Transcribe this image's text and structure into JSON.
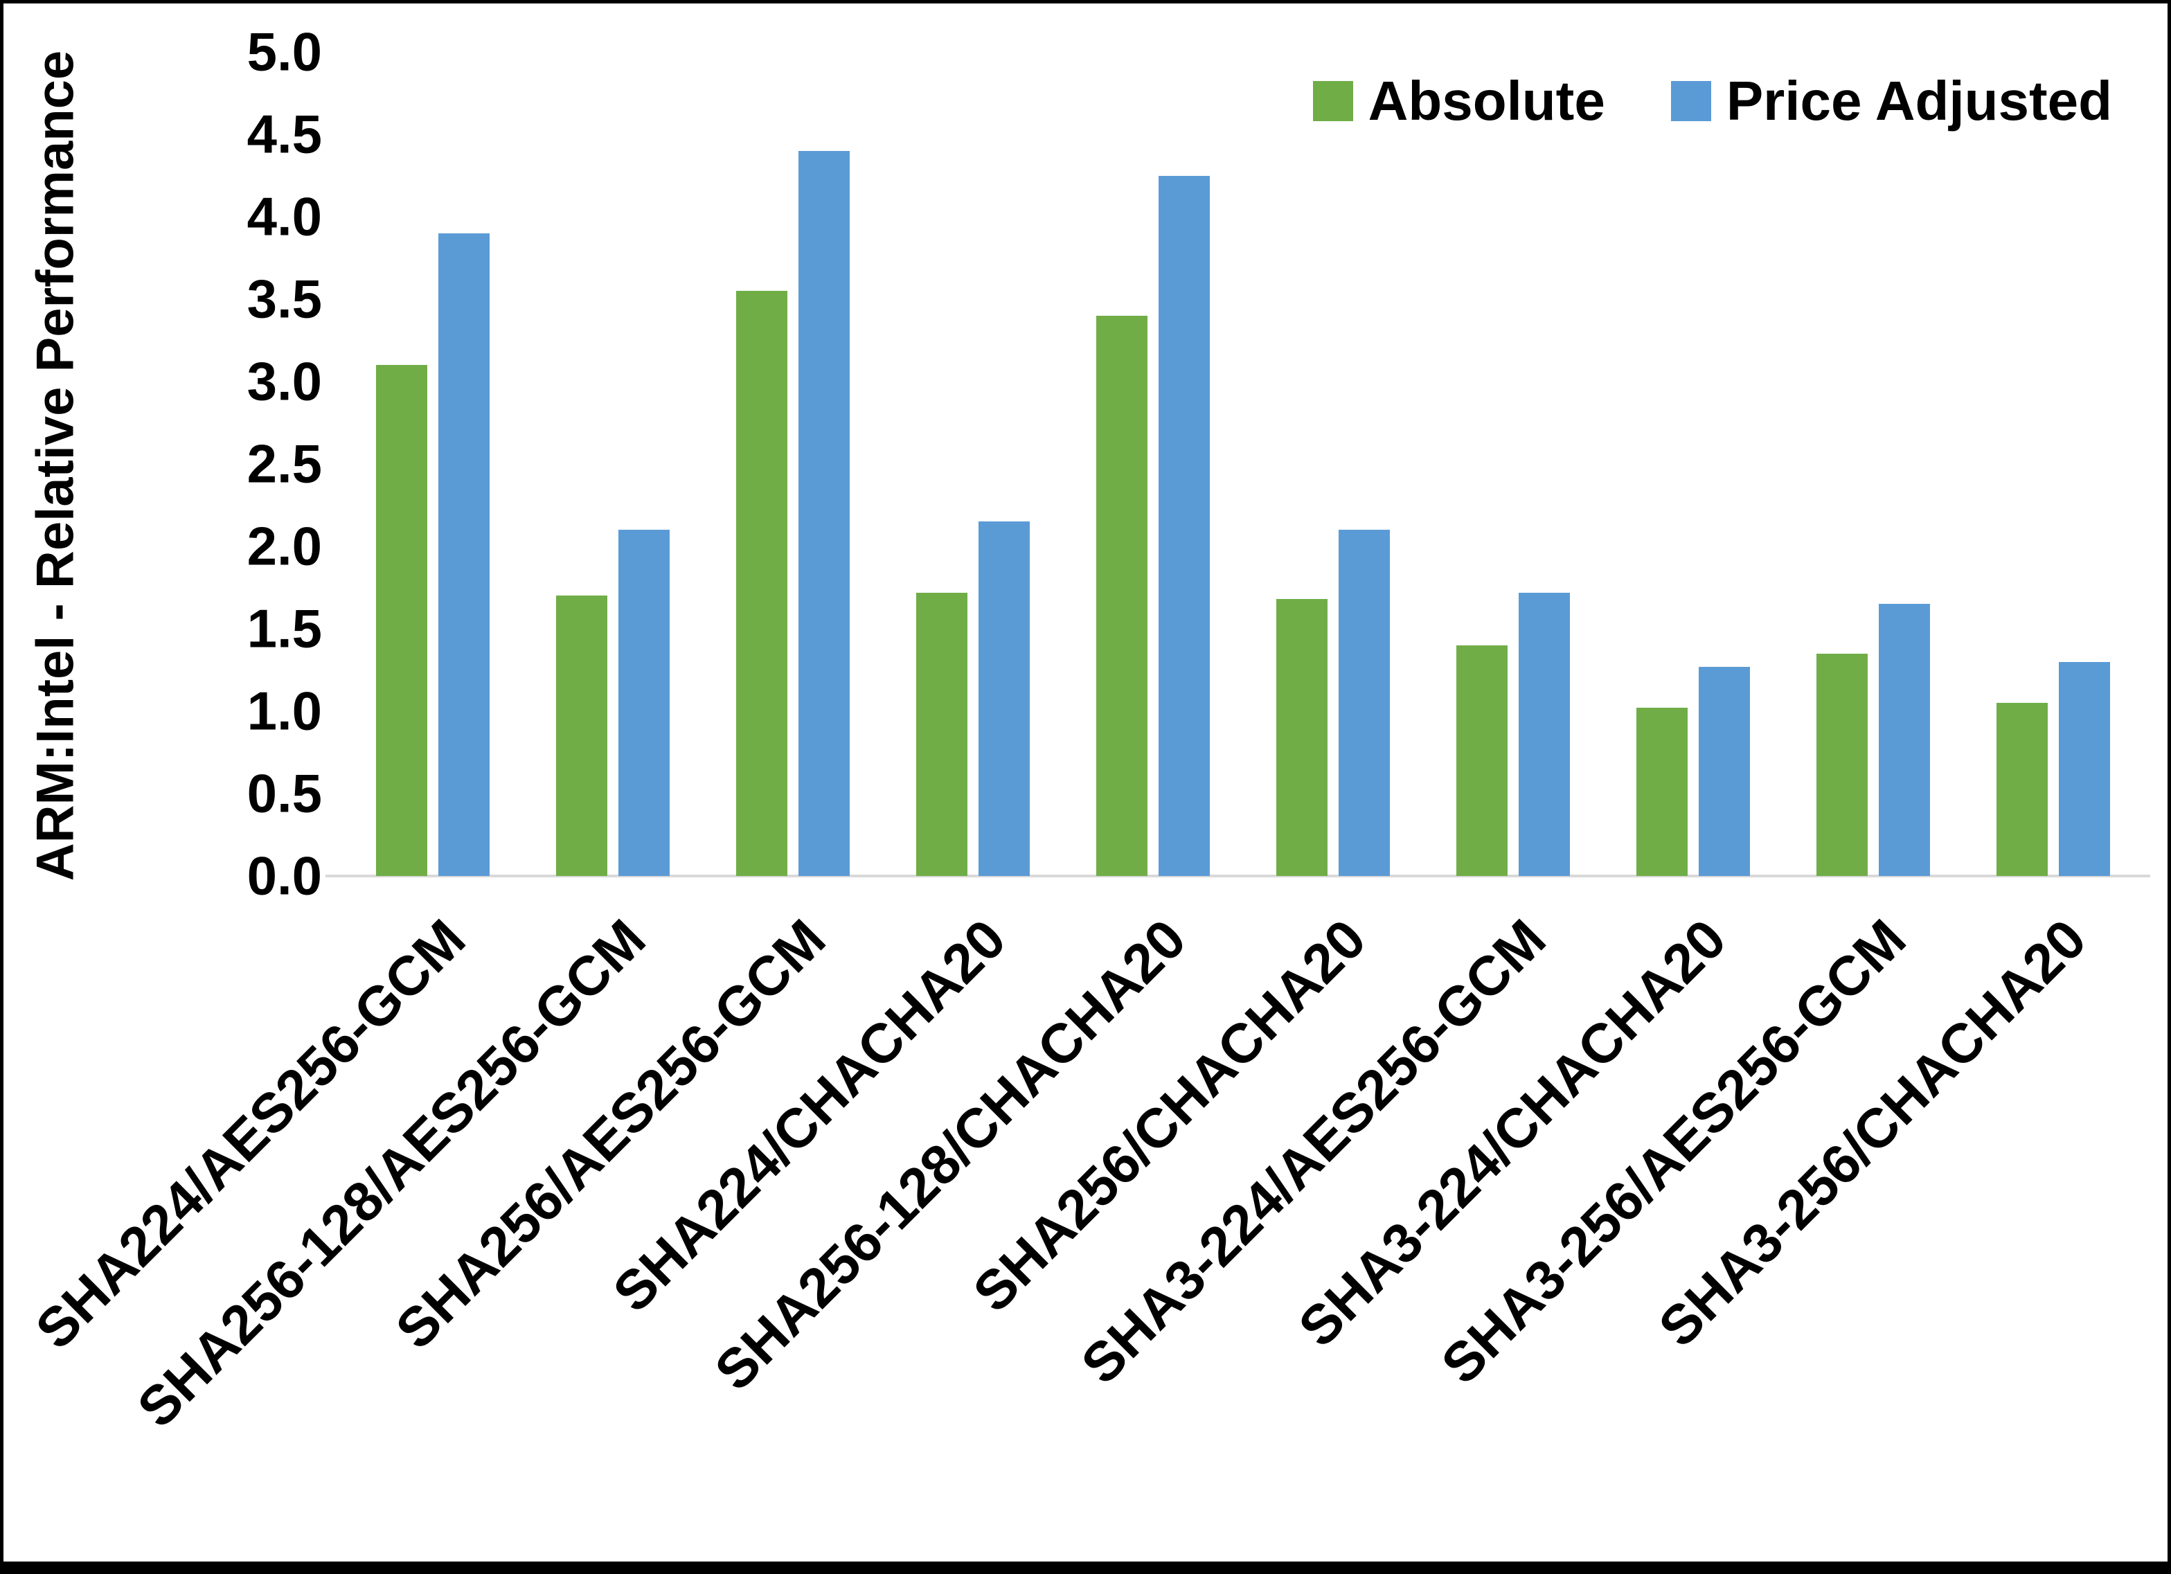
{
  "figure": {
    "background": "#ffffff",
    "border_color": "#000000"
  },
  "chart_data": {
    "type": "bar",
    "title": "",
    "xlabel": "",
    "ylabel": "ARM:Intel - Relative Performance",
    "ylim": [
      0,
      5
    ],
    "ytick_step": 0.5,
    "yticks": [
      "0.0",
      "0.5",
      "1.0",
      "1.5",
      "2.0",
      "2.5",
      "3.0",
      "3.5",
      "4.0",
      "4.5",
      "5.0"
    ],
    "grid": false,
    "legend_position": "top-right",
    "categories": [
      "SHA224/AES256-GCM",
      "SHA256-128/AES256-GCM",
      "SHA256/AES256-GCM",
      "SHA224/CHACHA20",
      "SHA256-128/CHACHA20",
      "SHA256/CHACHA20",
      "SHA3-224/AES256-GCM",
      "SHA3-224/CHACHA20",
      "SHA3-256/AES256-GCM",
      "SHA3-256/CHACHA20"
    ],
    "series": [
      {
        "name": "Absolute",
        "color": "#70AD47",
        "values": [
          3.1,
          1.7,
          3.55,
          1.72,
          3.4,
          1.68,
          1.4,
          1.02,
          1.35,
          1.05
        ]
      },
      {
        "name": "Price Adjusted",
        "color": "#5B9BD5",
        "values": [
          3.9,
          2.1,
          4.4,
          2.15,
          4.25,
          2.1,
          1.72,
          1.27,
          1.65,
          1.3
        ]
      }
    ]
  }
}
